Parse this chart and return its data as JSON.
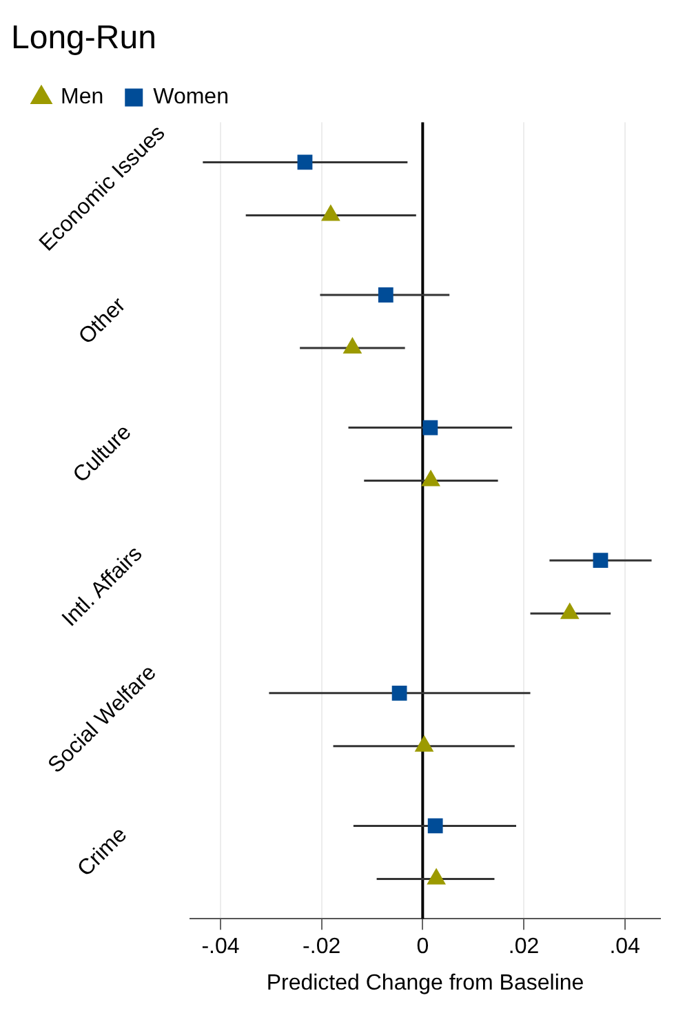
{
  "chart_data": {
    "type": "scatter",
    "orientation": "horizontal",
    "title": "Long-Run",
    "xlabel": "Predicted Change from Baseline",
    "categories": [
      "Economic Issues",
      "Other",
      "Culture",
      "Intl. Affairs",
      "Social Welfare",
      "Crime"
    ],
    "series": [
      {
        "name": "Women",
        "color": "#004c97",
        "marker": "square",
        "values": [
          -0.0233,
          -0.0073,
          0.0015,
          0.0352,
          -0.0046,
          0.0025
        ],
        "errors": [
          [
            -0.0435,
            -0.003
          ],
          [
            -0.0203,
            0.0053
          ],
          [
            -0.0147,
            0.0177
          ],
          [
            0.0251,
            0.0453
          ],
          [
            -0.0304,
            0.0213
          ],
          [
            -0.0137,
            0.0185
          ]
        ]
      },
      {
        "name": "Men",
        "color": "#9c9a00",
        "marker": "triangle",
        "values": [
          -0.0182,
          -0.0139,
          0.0016,
          0.0291,
          0.0003,
          0.0027
        ],
        "errors": [
          [
            -0.035,
            -0.0013
          ],
          [
            -0.0243,
            -0.0035
          ],
          [
            -0.0116,
            0.0149
          ],
          [
            0.0213,
            0.0372
          ],
          [
            -0.0177,
            0.0182
          ],
          [
            -0.0091,
            0.0142
          ]
        ]
      }
    ],
    "xlim": [
      -0.046,
      0.047
    ],
    "xticks": [
      {
        "value": -0.04,
        "label": "-.04"
      },
      {
        "value": -0.02,
        "label": "-.02"
      },
      0,
      {
        "value": 0.02,
        "label": ".02"
      },
      {
        "value": 0.04,
        "label": ".04"
      }
    ],
    "grid": "x",
    "legend": "top left",
    "ref_lines": [
      {
        "axis": "x",
        "value": 0,
        "color": "#000000"
      }
    ]
  }
}
